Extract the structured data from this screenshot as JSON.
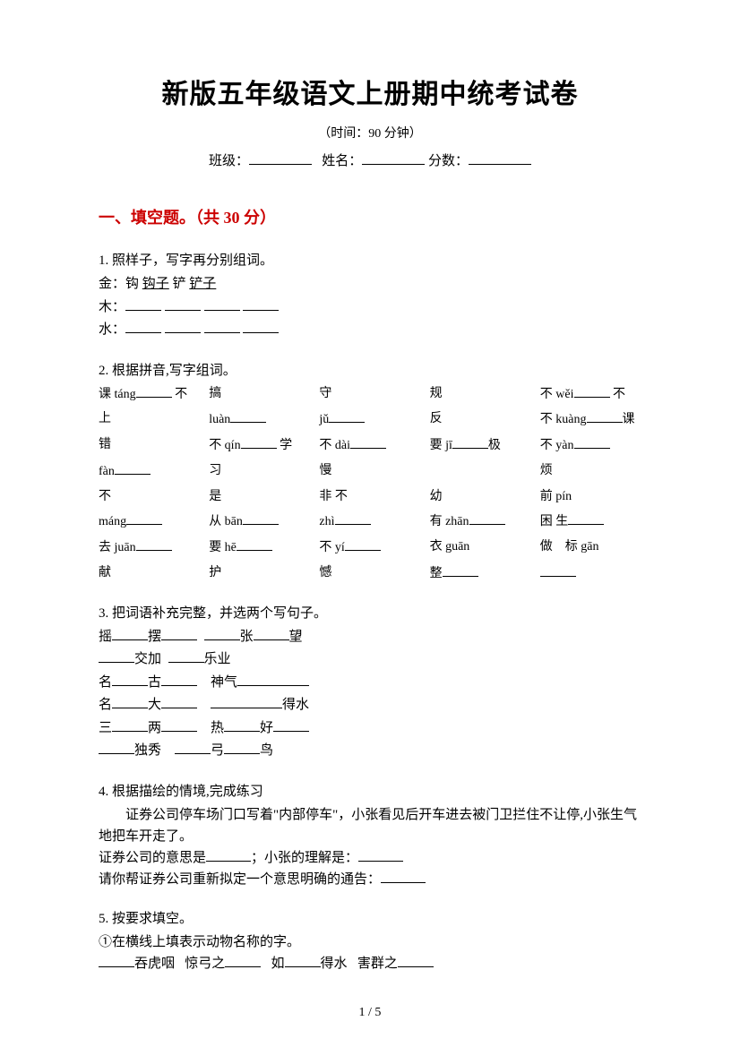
{
  "title": "新版五年级语文上册期中统考试卷",
  "subtitle": "（时间：90 分钟）",
  "info": {
    "class_label": "班级：",
    "name_label": "姓名：",
    "score_label": "分数："
  },
  "section1": {
    "header": "一、填空题。（共 30 分）"
  },
  "q1": {
    "label": "1.   照样子，写字再分别组词。",
    "line1_a": "金：钩 ",
    "line1_b": "钩子",
    "line1_c": "  铲 ",
    "line1_d": "铲子",
    "line2": "木：",
    "line3": "水："
  },
  "q2": {
    "label": "2.   根据拼音,写字组词。",
    "c1_1a": "课 táng",
    "c1_1b": "不",
    "c1_2a": "上",
    "c1_2b": "luàn",
    "c1_3a": "错",
    "c1_3b": "不 qín",
    "c1_4a": "fàn",
    "c1_4b": "习",
    "c1_5a": "不",
    "c1_5b": "是",
    "c1_6a": "máng",
    "c1_6b": "从 bān",
    "c1_7a": "去 juān",
    "c1_7b": "要 hē",
    "c1_8a": "献",
    "c1_8b": "护",
    "c2_1": "搞",
    "c2_2": "jǔ",
    "c2_3": "学",
    "c2_4": "",
    "c2_5": "非",
    "c2_6": "",
    "c2_7": "",
    "c3_1": "守",
    "c3_2": "",
    "c3_3": "不 dài",
    "c3_4": "慢",
    "c3_5": "不",
    "c3_6": "zhì",
    "c3_7": "不 yí",
    "c3_8": "憾",
    "c4_1": "规",
    "c4_2": "反",
    "c4_3": "要 jī",
    "c4_4": "极",
    "c4_5": "幼",
    "c4_6": "有 zhān",
    "c4_7": "衣 guān",
    "c4_8": "整",
    "c5_1": "不 wěi",
    "c5_2": "不 kuàng",
    "c5_3": "课",
    "c5_4": "不 yàn",
    "c5_5": "烦",
    "c5_6": "前 pín",
    "c5_7": "困 生",
    "c5_8": "做",
    "c5_9": "标 gān"
  },
  "q3": {
    "label": "3.   把词语补充完整，并选两个写句子。",
    "l1a": "摇",
    "l1b": "摆",
    "l1c": "张",
    "l1d": "望",
    "l2a": "交加",
    "l2b": "乐业",
    "l3a": "名",
    "l3b": "古",
    "l3c": "神气",
    "l4a": "名",
    "l4b": "大",
    "l4c": "得水",
    "l5a": "三",
    "l5b": "两",
    "l5c": "热",
    "l5d": "好",
    "l6a": "独秀",
    "l6b": "弓",
    "l6c": "鸟"
  },
  "q4": {
    "label": "4.   根据描绘的情境,完成练习",
    "line1": "证券公司停车场门口写着\"内部停车\"，小张看见后开车进去被门卫拦住不让停,小张生气地把车开走了。",
    "line2a": "证券公司的意思是",
    "line2b": "；小张的理解是：",
    "line3": "请你帮证券公司重新拟定一个意思明确的通告："
  },
  "q5": {
    "label": "5.   按要求填空。",
    "sub1": "①在横线上填表示动物名称的字。",
    "l1a": "吞虎咽",
    "l1b": "惊弓之",
    "l1c": "如",
    "l1d": "得水",
    "l1e": "害群之"
  },
  "page": "1 / 5"
}
